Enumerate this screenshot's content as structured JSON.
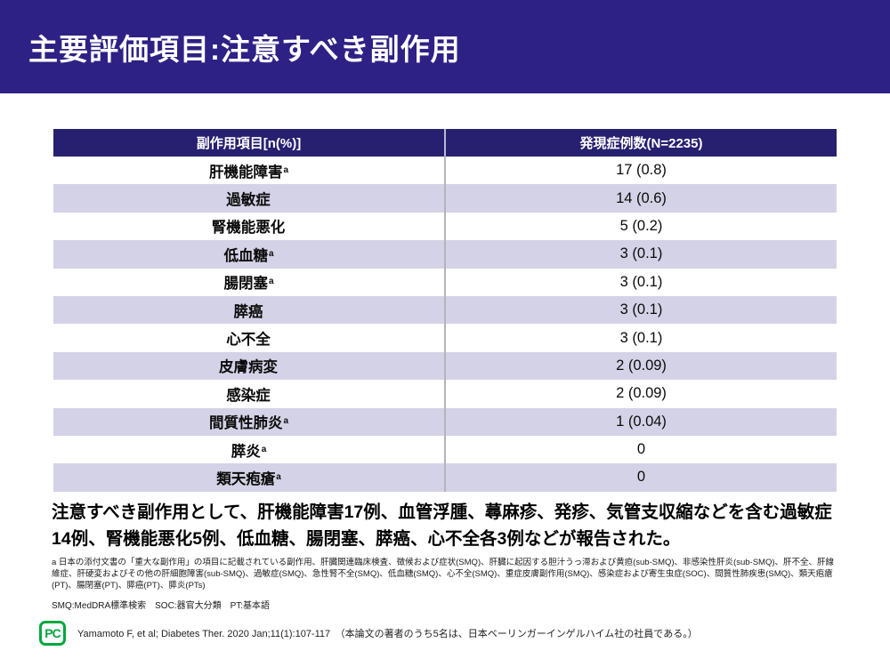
{
  "colors": {
    "title_band": "#2e2185",
    "table_header_bg": "#272070",
    "row_alt_bg": "#d4d2e6",
    "logo_green": "#00a73e"
  },
  "header": {
    "title": "主要評価項目:注意すべき副作用"
  },
  "table": {
    "columns": [
      "副作用項目[n(%)]",
      "発現症例数(N=2235)"
    ],
    "rows": [
      {
        "label": "肝機能障害",
        "sup": "a",
        "value": "17 (0.8)"
      },
      {
        "label": "過敏症",
        "sup": "",
        "value": "14 (0.6)"
      },
      {
        "label": "腎機能悪化",
        "sup": "",
        "value": "5 (0.2)"
      },
      {
        "label": "低血糖",
        "sup": "a",
        "value": "3 (0.1)"
      },
      {
        "label": "腸閉塞",
        "sup": "a",
        "value": "3 (0.1)"
      },
      {
        "label": "膵癌",
        "sup": "",
        "value": "3 (0.1)"
      },
      {
        "label": "心不全",
        "sup": "",
        "value": "3 (0.1)"
      },
      {
        "label": "皮膚病変",
        "sup": "",
        "value": "2 (0.09)"
      },
      {
        "label": "感染症",
        "sup": "",
        "value": "2 (0.09)"
      },
      {
        "label": "間質性肺炎",
        "sup": "a",
        "value": "1 (0.04)"
      },
      {
        "label": "膵炎",
        "sup": "a",
        "value": "0"
      },
      {
        "label": "類天疱瘡",
        "sup": "a",
        "value": "0"
      }
    ]
  },
  "summary": "注意すべき副作用として、肝機能障害17例、血管浮腫、蕁麻疹、発疹、気管支収縮などを含む過敏症14例、腎機能悪化5例、低血糖、腸閉塞、膵癌、心不全各3例などが報告された。",
  "footnotes": {
    "a": "a 日本の添付文書の「重大な副作用」の項目に記載されている副作用、肝臓関連臨床検査、徴候および症状(SMQ)、肝臓に起因する胆汁うっ滞および黄疸(sub-SMQ)、非感染性肝炎(sub-SMQ)、肝不全、肝線維症、肝硬変およびその他の肝細胞障害(sub-SMQ)、過敏症(SMQ)、急性腎不全(SMQ)、低血糖(SMQ)、心不全(SMQ)、重症皮膚副作用(SMQ)、感染症および寄生虫症(SOC)、間質性肺疾患(SMQ)、類天疱瘡(PT)、腸閉塞(PT)、膵癌(PT)、膵炎(PTs)",
    "abbreviations": "SMQ:MedDRA標準検索　SOC:器官大分類　PT:基本語"
  },
  "footer": {
    "logo_text": "PC",
    "citation": "Yamamoto F, et al; Diabetes Ther. 2020 Jan;11(1):107-117　（本論文の著者のうち5名は、日本ベーリンガーインゲルハイム社の社員である。）"
  }
}
